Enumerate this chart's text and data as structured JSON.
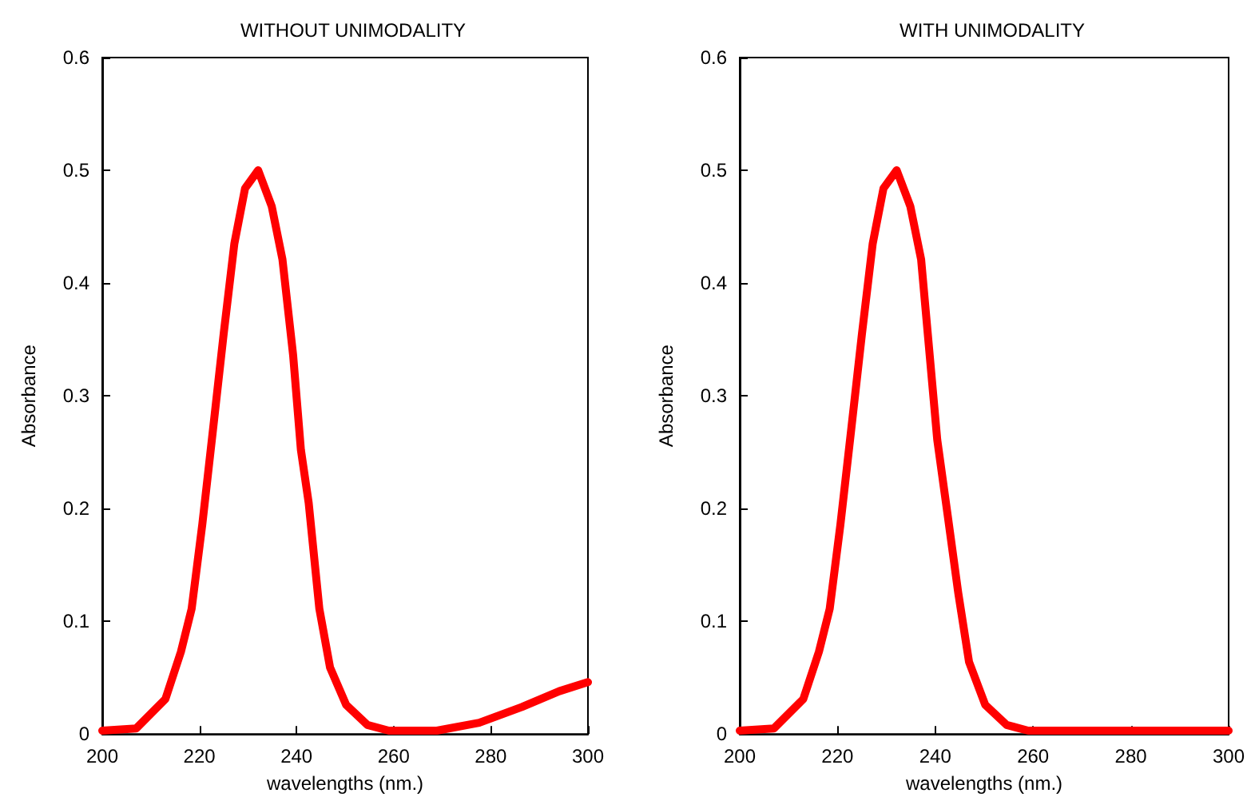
{
  "chart_data": [
    {
      "type": "line",
      "title": "WITHOUT UNIMODALITY",
      "xlabel": "wavelengths (nm.)",
      "ylabel": "Absorbance",
      "xlim": [
        200,
        300
      ],
      "xticks": [
        200,
        220,
        240,
        260,
        280,
        300
      ],
      "ylim": [
        0,
        0.6
      ],
      "yticks": [
        0,
        0.1,
        0.2,
        0.3,
        0.4,
        0.5,
        0.6
      ],
      "grid": false,
      "marker": "none",
      "line_style": "solid",
      "series": [
        {
          "color": "#ff0000",
          "x": [
            200,
            207,
            213,
            216.2,
            218.4,
            220.6,
            222.8,
            225,
            227.2,
            229.4,
            232.1,
            234.9,
            237.1,
            239.3,
            240.9,
            242.5,
            244.7,
            246.9,
            250.2,
            254.6,
            259,
            268.9,
            277.6,
            286.4,
            294.1,
            300
          ],
          "values": [
            0.003,
            0.005,
            0.031,
            0.073,
            0.111,
            0.186,
            0.27,
            0.355,
            0.435,
            0.484,
            0.5,
            0.468,
            0.421,
            0.336,
            0.252,
            0.205,
            0.111,
            0.059,
            0.026,
            0.008,
            0.003,
            0.003,
            0.01,
            0.024,
            0.038,
            0.046
          ]
        }
      ]
    },
    {
      "type": "line",
      "title": "WITH UNIMODALITY",
      "xlabel": "wavelengths (nm.)",
      "ylabel": "Absorbance",
      "xlim": [
        200,
        300
      ],
      "xticks": [
        200,
        220,
        240,
        260,
        280,
        300
      ],
      "ylim": [
        0,
        0.6
      ],
      "yticks": [
        0,
        0.1,
        0.2,
        0.3,
        0.4,
        0.5,
        0.6
      ],
      "grid": false,
      "marker": "none",
      "line_style": "solid",
      "series": [
        {
          "color": "#ff0000",
          "x": [
            200,
            207,
            213,
            216.2,
            218.4,
            220.6,
            222.8,
            225,
            227.2,
            229.4,
            232.1,
            234.9,
            237.1,
            240.4,
            242.5,
            244.7,
            246.9,
            250.2,
            254.6,
            259,
            300
          ],
          "values": [
            0.003,
            0.005,
            0.031,
            0.073,
            0.111,
            0.186,
            0.27,
            0.355,
            0.435,
            0.484,
            0.5,
            0.468,
            0.421,
            0.261,
            0.195,
            0.125,
            0.064,
            0.026,
            0.008,
            0.003,
            0.003
          ]
        }
      ]
    }
  ]
}
